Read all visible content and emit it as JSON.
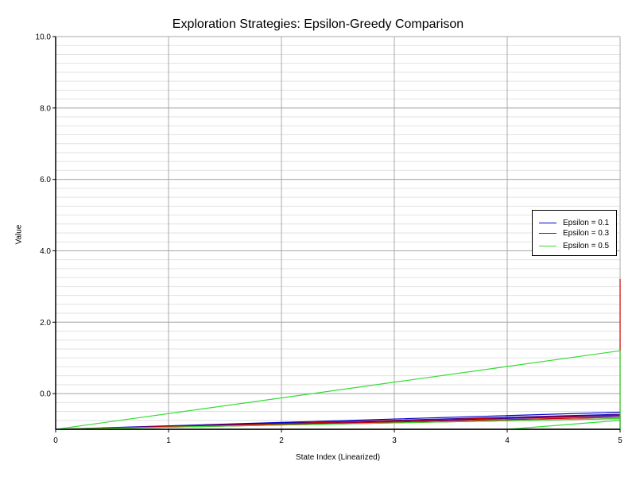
{
  "chart_data": {
    "type": "line",
    "title": "Exploration Strategies: Epsilon-Greedy Comparison",
    "xlabel": "State Index (Linearized)",
    "ylabel": "Value",
    "xlim": [
      0,
      5
    ],
    "ylim": [
      -1,
      10
    ],
    "xticks": [
      "0",
      "1",
      "2",
      "3",
      "4",
      "5"
    ],
    "yticks": [
      "0.0",
      "2.0",
      "4.0",
      "6.0",
      "8.0",
      "10.0"
    ],
    "grid": true,
    "legend_position": "right",
    "series": [
      {
        "name": "Epsilon = 0.1",
        "color": "#0000cc",
        "points": [
          [
            0,
            -1
          ],
          [
            5,
            -0.52
          ],
          [
            5,
            -1
          ],
          [
            0,
            -1
          ],
          [
            5,
            -0.58
          ],
          [
            5,
            -1
          ],
          [
            0,
            -1
          ],
          [
            5,
            -0.62
          ]
        ]
      },
      {
        "name": "Epsilon = 0.3",
        "color": "#cc0000",
        "points": [
          [
            0,
            -1
          ],
          [
            5,
            -0.6
          ],
          [
            5,
            -1
          ],
          [
            0,
            -1
          ],
          [
            5,
            -0.66
          ],
          [
            5,
            3.2
          ],
          [
            5,
            -1
          ],
          [
            0,
            -1
          ],
          [
            5,
            -0.7
          ]
        ]
      },
      {
        "name": "Epsilon = 0.5",
        "color": "#33dd33",
        "points": [
          [
            0,
            -1
          ],
          [
            5,
            1.2
          ],
          [
            5,
            -1
          ],
          [
            0,
            -1
          ],
          [
            5,
            -0.7
          ],
          [
            5,
            -1
          ],
          [
            4,
            -1
          ],
          [
            5,
            -0.75
          ],
          [
            5,
            -1
          ],
          [
            0,
            -1
          ]
        ]
      }
    ]
  }
}
